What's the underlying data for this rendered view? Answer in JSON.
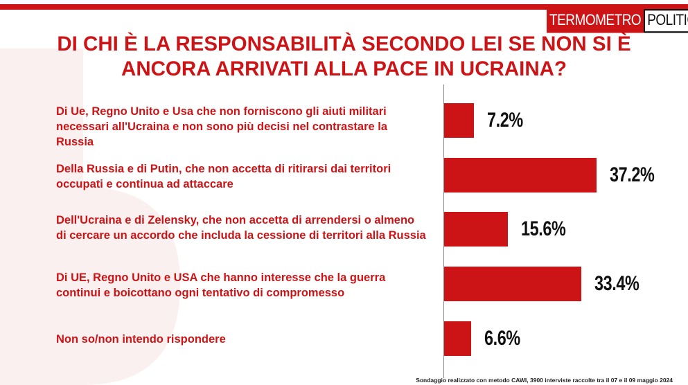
{
  "brand": {
    "part1": "TERMOMETRO",
    "part2": "POLITICO",
    "accent": "#cc1417"
  },
  "title": {
    "line1": "DI CHI È LA RESPONSABILITÀ SECONDO LEI SE NON SI È",
    "line2": "ANCORA ARRIVATI ALLA PACE IN UCRAINA?"
  },
  "footer": "Sondaggio realizzato con metodo CAWI, 3900 interviste raccolte tra il 07 e il 09 maggio 2024",
  "chart_data": {
    "type": "bar",
    "orientation": "horizontal",
    "categories": [
      "Di Ue, Regno Unito e Usa che non forniscono gli aiuti militari necessari all'Ucraina e non sono più decisi nel contrastare la Russia",
      "Della Russia e di Putin, che non accetta di ritirarsi dai territori occupati e continua ad attaccare",
      "Dell'Ucraina e di Zelensky, che non accetta di arrendersi o almeno di cercare un accordo che includa la cessione di territori alla Russia",
      "Di UE, Regno Unito e USA che hanno interesse che la guerra continui e boicottano ogni tentativo di compromesso",
      "Non so/non intendo rispondere"
    ],
    "values": [
      7.2,
      37.2,
      15.6,
      33.4,
      6.6
    ],
    "value_labels": [
      "7.2%",
      "37.2%",
      "15.6%",
      "33.4%",
      "6.6%"
    ],
    "bar_color": "#cc1417",
    "xlim": [
      0,
      40
    ]
  }
}
